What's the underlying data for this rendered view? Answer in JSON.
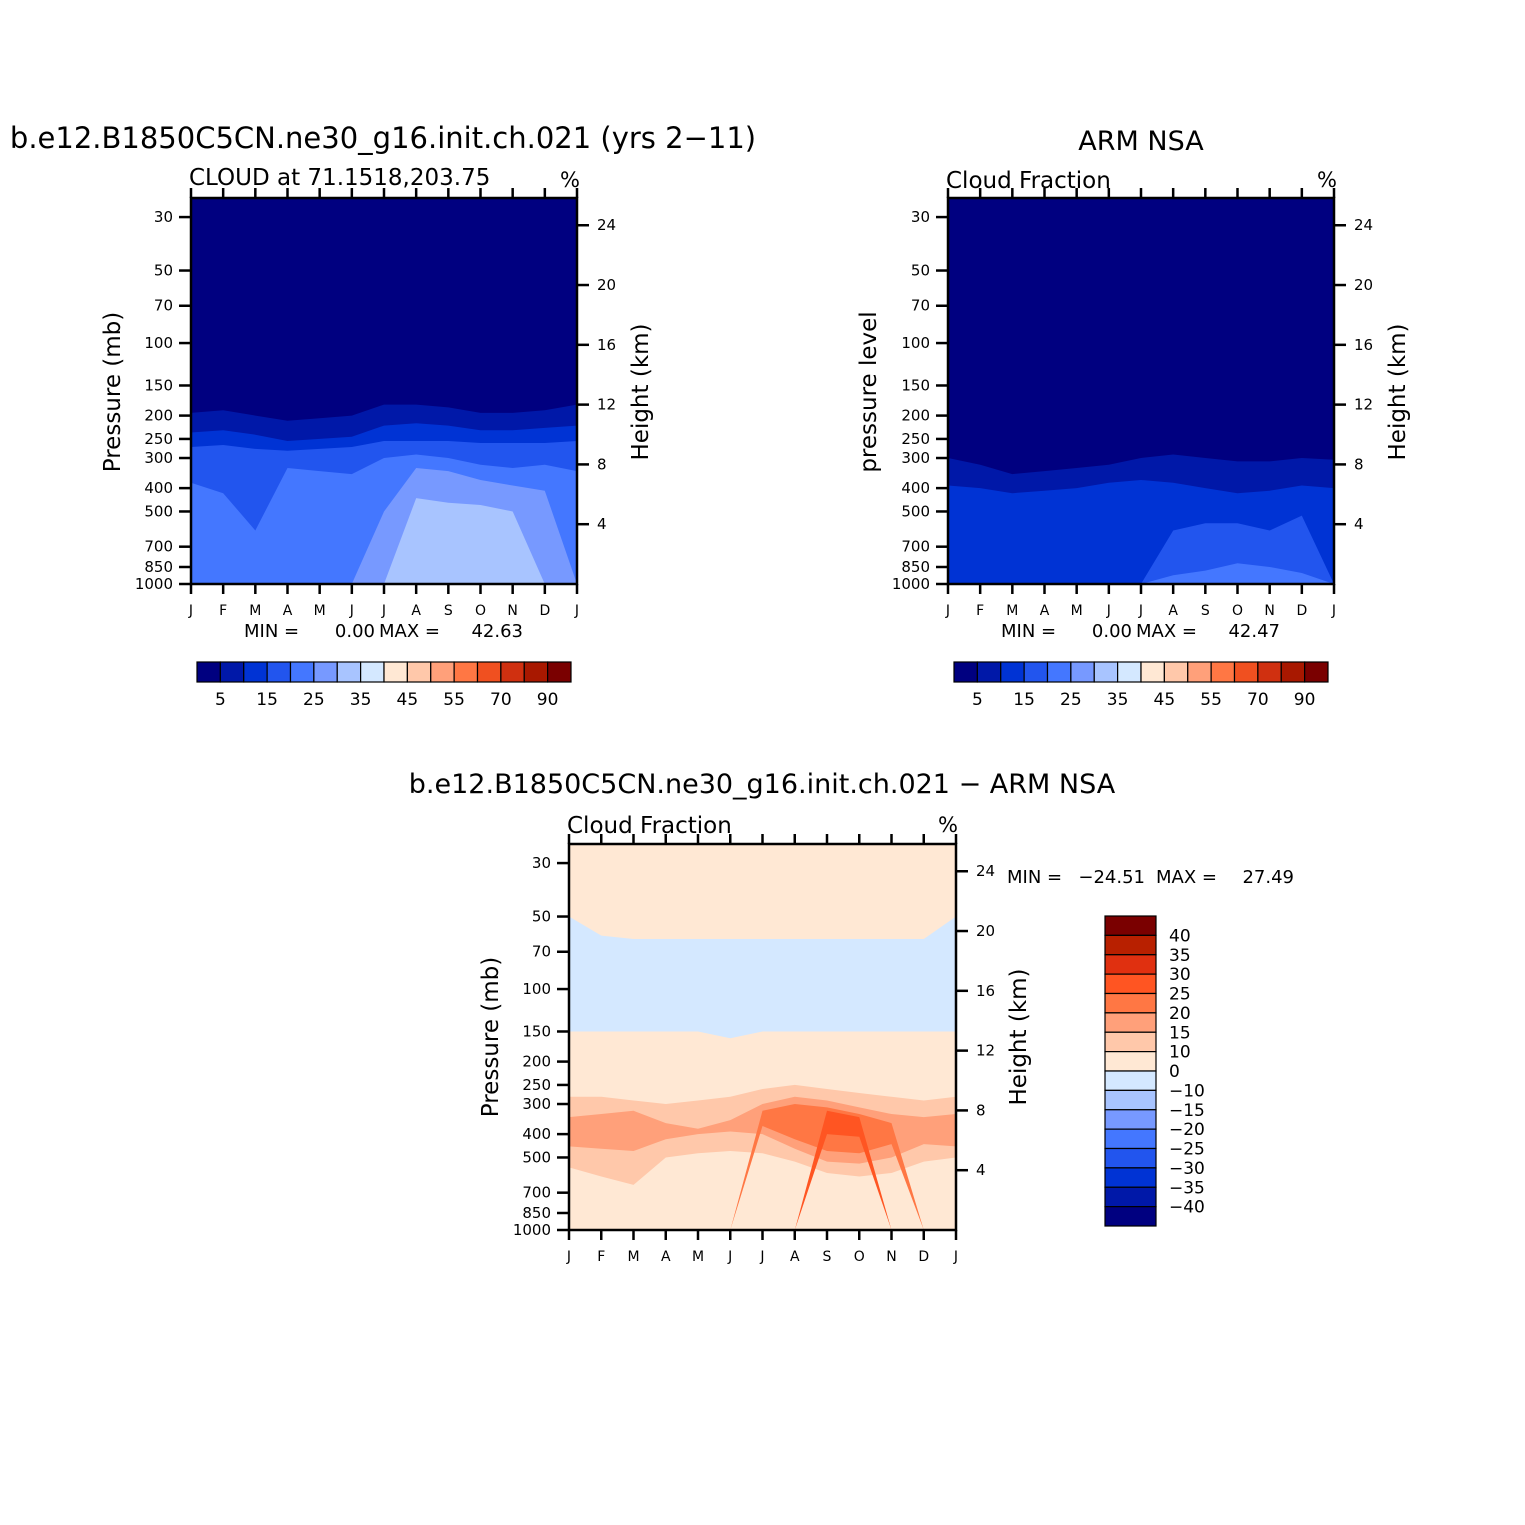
{
  "chart_data": [
    {
      "type": "heatmap",
      "title": "b.e12.B1850C5CN.ne30_g16.init.ch.021 (yrs 2−11)",
      "subtitle": "CLOUD at 71.1518,203.75",
      "units": "%",
      "ylabel": "Pressure (mb)",
      "ylabel_right": "Height (km)",
      "x_ticks": [
        "J",
        "F",
        "M",
        "A",
        "M",
        "J",
        "J",
        "A",
        "S",
        "O",
        "N",
        "D",
        "J"
      ],
      "y_ticks": [
        "30",
        "50",
        "70",
        "100",
        "150",
        "200",
        "250",
        "300",
        "400",
        "500",
        "700",
        "850",
        "1000"
      ],
      "y_ticks_right": [
        "24",
        "20",
        "16",
        "12",
        "8",
        "4"
      ],
      "min_label": "MIN =",
      "min_value": "0.00",
      "max_label": "MAX =",
      "max_value": "42.63",
      "colorbar_labels": [
        "5",
        "15",
        "25",
        "35",
        "45",
        "55",
        "70",
        "90"
      ],
      "colorbar_colors": [
        "#000080",
        "#0018a8",
        "#0033d4",
        "#2255ee",
        "#4477ff",
        "#7799ff",
        "#a8c4ff",
        "#d4e8ff",
        "#ffe8d4",
        "#ffc8aa",
        "#ffa07a",
        "#ff7744",
        "#f05020",
        "#d03010",
        "#a81800",
        "#7a0000"
      ],
      "boundaries": [
        {
          "level": 5,
          "color": "#0018a8",
          "p": [
            195,
            190,
            200,
            210,
            205,
            200,
            180,
            180,
            185,
            195,
            195,
            190,
            180
          ]
        },
        {
          "level": 10,
          "color": "#0033d4",
          "p": [
            235,
            230,
            240,
            255,
            250,
            245,
            220,
            215,
            220,
            230,
            230,
            225,
            220
          ]
        },
        {
          "level": 15,
          "color": "#2255ee",
          "p": [
            270,
            265,
            275,
            280,
            275,
            270,
            255,
            255,
            255,
            260,
            260,
            260,
            255
          ]
        },
        {
          "level": 20,
          "color": "#4477ff",
          "p": [
            380,
            420,
            600,
            330,
            340,
            350,
            300,
            290,
            300,
            320,
            330,
            320,
            340
          ]
        },
        {
          "level": 25,
          "color": "#7799ff",
          "p": [
            1000,
            1000,
            1000,
            1000,
            1000,
            1000,
            500,
            330,
            340,
            370,
            390,
            410,
            1000
          ]
        },
        {
          "level": 30,
          "color": "#a8c4ff",
          "p": [
            1000,
            1000,
            1000,
            1000,
            1000,
            1000,
            1000,
            440,
            460,
            470,
            500,
            1000,
            1000
          ]
        }
      ]
    },
    {
      "type": "heatmap",
      "title": "ARM NSA",
      "subtitle": "Cloud Fraction",
      "units": "%",
      "ylabel": "pressure level",
      "ylabel_right": "Height (km)",
      "x_ticks": [
        "J",
        "F",
        "M",
        "A",
        "M",
        "J",
        "J",
        "A",
        "S",
        "O",
        "N",
        "D",
        "J"
      ],
      "y_ticks": [
        "30",
        "50",
        "70",
        "100",
        "150",
        "200",
        "250",
        "300",
        "400",
        "500",
        "700",
        "850",
        "1000"
      ],
      "y_ticks_right": [
        "24",
        "20",
        "16",
        "12",
        "8",
        "4"
      ],
      "min_label": "MIN =",
      "min_value": "0.00",
      "max_label": "MAX =",
      "max_value": "42.47",
      "colorbar_labels": [
        "5",
        "15",
        "25",
        "35",
        "45",
        "55",
        "70",
        "90"
      ],
      "colorbar_colors": [
        "#000080",
        "#0018a8",
        "#0033d4",
        "#2255ee",
        "#4477ff",
        "#7799ff",
        "#a8c4ff",
        "#d4e8ff",
        "#ffe8d4",
        "#ffc8aa",
        "#ffa07a",
        "#ff7744",
        "#f05020",
        "#d03010",
        "#a81800",
        "#7a0000"
      ],
      "boundaries": [
        {
          "level": 5,
          "color": "#0018a8",
          "p": [
            300,
            320,
            350,
            340,
            330,
            320,
            300,
            290,
            300,
            310,
            310,
            300,
            305
          ]
        },
        {
          "level": 10,
          "color": "#0033d4",
          "p": [
            390,
            400,
            420,
            410,
            400,
            380,
            370,
            380,
            400,
            420,
            410,
            390,
            400
          ]
        },
        {
          "level": 15,
          "color": "#2255ee",
          "p": [
            1000,
            1000,
            1000,
            1000,
            1000,
            1000,
            1000,
            600,
            560,
            560,
            600,
            520,
            1000
          ]
        },
        {
          "level": 20,
          "color": "#4477ff",
          "p": [
            1000,
            1000,
            1000,
            1000,
            1000,
            1000,
            1000,
            920,
            880,
            820,
            850,
            900,
            1000
          ]
        }
      ]
    },
    {
      "type": "heatmap",
      "title": "b.e12.B1850C5CN.ne30_g16.init.ch.021 − ARM NSA",
      "subtitle": "Cloud Fraction",
      "units": "%",
      "ylabel": "Pressure (mb)",
      "ylabel_right": "Height (km)",
      "x_ticks": [
        "J",
        "F",
        "M",
        "A",
        "M",
        "J",
        "J",
        "A",
        "S",
        "O",
        "N",
        "D",
        "J"
      ],
      "y_ticks": [
        "30",
        "50",
        "70",
        "100",
        "150",
        "200",
        "250",
        "300",
        "400",
        "500",
        "700",
        "850",
        "1000"
      ],
      "y_ticks_right": [
        "24",
        "20",
        "16",
        "12",
        "8",
        "4"
      ],
      "min_label": "MIN =",
      "min_value": "−24.51",
      "max_label": "MAX =",
      "max_value": "27.49",
      "colorbar_labels": [
        "40",
        "35",
        "30",
        "25",
        "20",
        "15",
        "10",
        "0",
        "−10",
        "−15",
        "−20",
        "−25",
        "−30",
        "−35",
        "−40"
      ],
      "colorbar_colors": [
        "#7a0000",
        "#b82000",
        "#e03010",
        "#ff5522",
        "#ff7744",
        "#ffa07a",
        "#ffc8aa",
        "#ffe8d4",
        "#d4e8ff",
        "#a8c4ff",
        "#7799ff",
        "#4477ff",
        "#2255ee",
        "#0033d4",
        "#0018a8",
        "#000080"
      ],
      "boundaries": [
        {
          "level": 0,
          "color": "#d4e8ff",
          "lo": [
            50,
            60,
            62,
            62,
            62,
            62,
            62,
            62,
            62,
            62,
            62,
            62,
            50
          ],
          "hi": [
            150,
            150,
            150,
            150,
            150,
            160,
            150,
            150,
            150,
            150,
            150,
            150,
            150
          ]
        },
        {
          "level": 10,
          "color": "#ffc8aa",
          "lo": [
            280,
            280,
            290,
            300,
            290,
            280,
            260,
            250,
            260,
            270,
            280,
            290,
            280
          ],
          "hi": [
            550,
            600,
            650,
            500,
            480,
            470,
            480,
            520,
            580,
            600,
            580,
            520,
            500
          ]
        },
        {
          "level": 15,
          "color": "#ffa07a",
          "lo": [
            340,
            330,
            320,
            360,
            380,
            350,
            300,
            280,
            290,
            310,
            330,
            340,
            330
          ],
          "hi": [
            450,
            460,
            470,
            420,
            400,
            390,
            400,
            460,
            520,
            530,
            500,
            440,
            450
          ]
        },
        {
          "level": 20,
          "color": "#ff7744",
          "lo": [
            1000,
            1000,
            1000,
            1000,
            1000,
            1000,
            320,
            300,
            310,
            330,
            360,
            1000,
            1000
          ],
          "hi": [
            1000,
            1000,
            1000,
            1000,
            1000,
            1000,
            370,
            420,
            470,
            480,
            440,
            1000,
            1000
          ]
        },
        {
          "level": 25,
          "color": "#ff5522",
          "lo": [
            1000,
            1000,
            1000,
            1000,
            1000,
            1000,
            1000,
            1000,
            320,
            340,
            1000,
            1000,
            1000
          ],
          "hi": [
            1000,
            1000,
            1000,
            1000,
            1000,
            1000,
            1000,
            1000,
            400,
            410,
            1000,
            1000,
            1000
          ]
        }
      ]
    }
  ]
}
